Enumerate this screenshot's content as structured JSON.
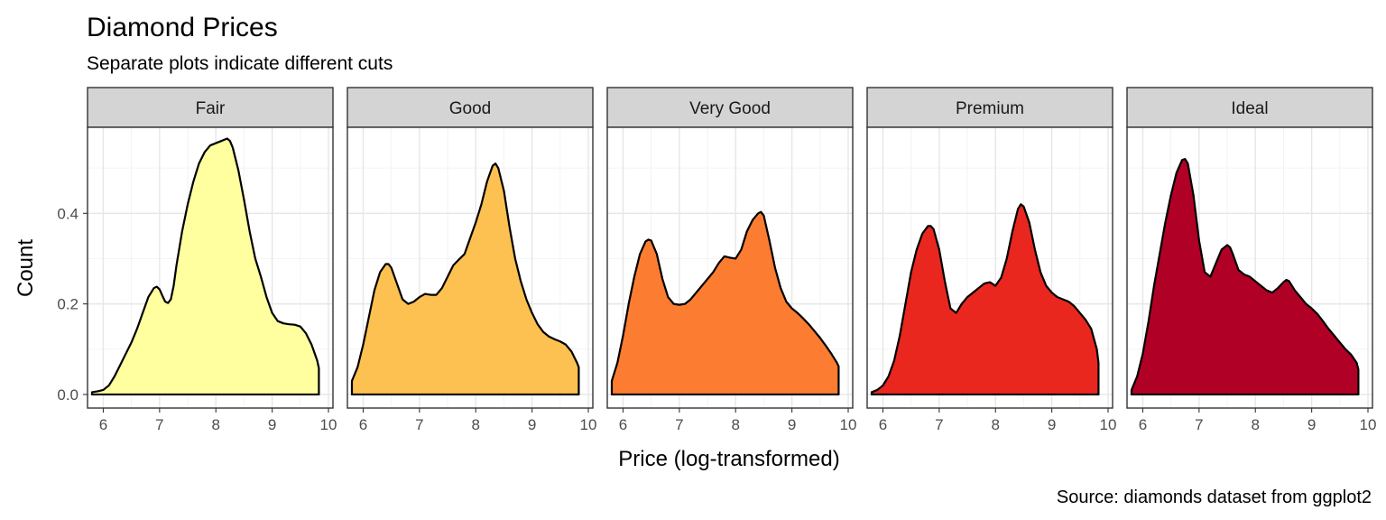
{
  "chart_data": {
    "type": "area",
    "title": "Diamond Prices",
    "subtitle": "Separate plots indicate different cuts",
    "xlabel": "Price (log-transformed)",
    "ylabel": "Count",
    "caption": "Source: diamonds dataset from ggplot2",
    "xlim": [
      5.72,
      10.08
    ],
    "ylim": [
      -0.03,
      0.59
    ],
    "x_ticks": [
      6,
      7,
      8,
      9,
      10
    ],
    "x_tick_labels": [
      "6",
      "7",
      "8",
      "9",
      "10"
    ],
    "y_ticks": [
      0.0,
      0.2,
      0.4
    ],
    "y_tick_labels": [
      "0.0",
      "0.2",
      "0.4"
    ],
    "grid": true,
    "legend": "none",
    "facets": [
      {
        "name": "Fair",
        "color": "#ffffa0",
        "x": [
          5.8,
          5.9,
          6.0,
          6.1,
          6.2,
          6.3,
          6.4,
          6.5,
          6.6,
          6.7,
          6.8,
          6.9,
          6.95,
          7.0,
          7.05,
          7.1,
          7.15,
          7.2,
          7.25,
          7.3,
          7.4,
          7.5,
          7.6,
          7.7,
          7.8,
          7.9,
          8.0,
          8.1,
          8.2,
          8.25,
          8.3,
          8.4,
          8.5,
          8.6,
          8.7,
          8.8,
          8.9,
          9.0,
          9.1,
          9.2,
          9.3,
          9.4,
          9.5,
          9.6,
          9.7,
          9.8,
          9.83
        ],
        "y": [
          0.005,
          0.007,
          0.01,
          0.02,
          0.04,
          0.065,
          0.09,
          0.115,
          0.145,
          0.18,
          0.215,
          0.235,
          0.238,
          0.232,
          0.218,
          0.205,
          0.202,
          0.21,
          0.24,
          0.285,
          0.36,
          0.42,
          0.47,
          0.51,
          0.535,
          0.55,
          0.555,
          0.56,
          0.565,
          0.56,
          0.545,
          0.495,
          0.43,
          0.36,
          0.3,
          0.26,
          0.215,
          0.18,
          0.162,
          0.157,
          0.155,
          0.154,
          0.15,
          0.135,
          0.11,
          0.075,
          0.058
        ]
      },
      {
        "name": "Good",
        "color": "#fdc151",
        "x": [
          5.8,
          5.9,
          6.0,
          6.1,
          6.2,
          6.3,
          6.4,
          6.45,
          6.5,
          6.6,
          6.7,
          6.8,
          6.9,
          7.0,
          7.1,
          7.2,
          7.3,
          7.4,
          7.5,
          7.6,
          7.7,
          7.8,
          7.9,
          8.0,
          8.1,
          8.2,
          8.3,
          8.35,
          8.4,
          8.5,
          8.6,
          8.7,
          8.8,
          8.9,
          9.0,
          9.1,
          9.2,
          9.3,
          9.4,
          9.5,
          9.6,
          9.7,
          9.8,
          9.83
        ],
        "y": [
          0.03,
          0.06,
          0.11,
          0.17,
          0.23,
          0.27,
          0.288,
          0.288,
          0.28,
          0.245,
          0.21,
          0.2,
          0.205,
          0.215,
          0.222,
          0.22,
          0.22,
          0.235,
          0.26,
          0.285,
          0.298,
          0.31,
          0.345,
          0.38,
          0.42,
          0.47,
          0.505,
          0.51,
          0.5,
          0.45,
          0.37,
          0.3,
          0.25,
          0.21,
          0.18,
          0.155,
          0.138,
          0.128,
          0.122,
          0.117,
          0.11,
          0.095,
          0.07,
          0.06
        ]
      },
      {
        "name": "Very Good",
        "color": "#fc7c31",
        "x": [
          5.8,
          5.9,
          6.0,
          6.1,
          6.2,
          6.3,
          6.4,
          6.45,
          6.5,
          6.6,
          6.7,
          6.8,
          6.9,
          7.0,
          7.1,
          7.2,
          7.3,
          7.4,
          7.5,
          7.6,
          7.7,
          7.8,
          7.9,
          8.0,
          8.1,
          8.2,
          8.3,
          8.4,
          8.45,
          8.5,
          8.6,
          8.7,
          8.8,
          8.9,
          9.0,
          9.1,
          9.2,
          9.3,
          9.4,
          9.5,
          9.6,
          9.7,
          9.8,
          9.83
        ],
        "y": [
          0.03,
          0.07,
          0.13,
          0.2,
          0.26,
          0.31,
          0.338,
          0.342,
          0.34,
          0.31,
          0.255,
          0.215,
          0.2,
          0.198,
          0.2,
          0.21,
          0.225,
          0.24,
          0.255,
          0.27,
          0.29,
          0.305,
          0.302,
          0.3,
          0.32,
          0.36,
          0.385,
          0.4,
          0.403,
          0.395,
          0.34,
          0.28,
          0.235,
          0.205,
          0.19,
          0.18,
          0.168,
          0.155,
          0.14,
          0.125,
          0.108,
          0.09,
          0.07,
          0.062
        ]
      },
      {
        "name": "Premium",
        "color": "#e9271f",
        "x": [
          5.8,
          5.9,
          6.0,
          6.1,
          6.2,
          6.3,
          6.4,
          6.5,
          6.6,
          6.7,
          6.8,
          6.85,
          6.9,
          7.0,
          7.1,
          7.2,
          7.3,
          7.4,
          7.5,
          7.6,
          7.7,
          7.8,
          7.9,
          8.0,
          8.1,
          8.2,
          8.3,
          8.4,
          8.45,
          8.5,
          8.6,
          8.7,
          8.8,
          8.9,
          9.0,
          9.1,
          9.2,
          9.3,
          9.4,
          9.5,
          9.6,
          9.7,
          9.8,
          9.83
        ],
        "y": [
          0.005,
          0.01,
          0.02,
          0.04,
          0.075,
          0.13,
          0.2,
          0.27,
          0.32,
          0.355,
          0.372,
          0.372,
          0.365,
          0.32,
          0.25,
          0.19,
          0.18,
          0.2,
          0.215,
          0.225,
          0.235,
          0.245,
          0.248,
          0.24,
          0.258,
          0.3,
          0.36,
          0.41,
          0.42,
          0.415,
          0.38,
          0.32,
          0.27,
          0.24,
          0.225,
          0.215,
          0.21,
          0.205,
          0.195,
          0.18,
          0.165,
          0.145,
          0.1,
          0.07
        ]
      },
      {
        "name": "Ideal",
        "color": "#b10026",
        "x": [
          5.8,
          5.9,
          6.0,
          6.1,
          6.2,
          6.3,
          6.4,
          6.5,
          6.6,
          6.7,
          6.75,
          6.8,
          6.9,
          7.0,
          7.1,
          7.2,
          7.3,
          7.4,
          7.5,
          7.55,
          7.6,
          7.7,
          7.8,
          7.9,
          8.0,
          8.1,
          8.2,
          8.3,
          8.4,
          8.5,
          8.55,
          8.6,
          8.7,
          8.8,
          8.9,
          9.0,
          9.1,
          9.2,
          9.3,
          9.4,
          9.5,
          9.6,
          9.7,
          9.8,
          9.83
        ],
        "y": [
          0.01,
          0.04,
          0.09,
          0.16,
          0.24,
          0.31,
          0.38,
          0.44,
          0.49,
          0.518,
          0.52,
          0.51,
          0.44,
          0.34,
          0.27,
          0.26,
          0.29,
          0.32,
          0.33,
          0.325,
          0.31,
          0.275,
          0.265,
          0.26,
          0.25,
          0.24,
          0.23,
          0.225,
          0.235,
          0.248,
          0.253,
          0.25,
          0.23,
          0.215,
          0.2,
          0.19,
          0.178,
          0.162,
          0.145,
          0.13,
          0.115,
          0.1,
          0.088,
          0.07,
          0.055
        ]
      }
    ]
  }
}
